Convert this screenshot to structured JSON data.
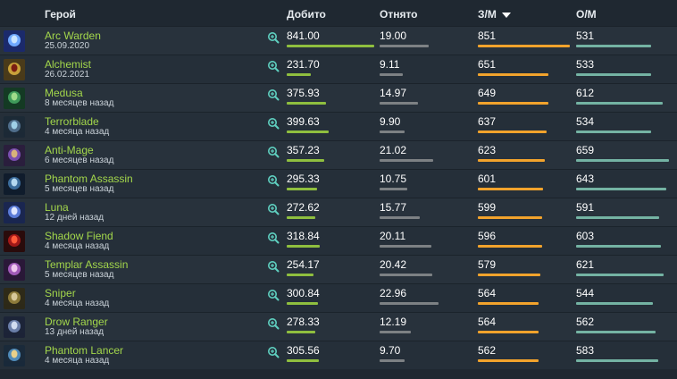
{
  "header": {
    "hero": "Герой",
    "dealt": "Добито",
    "denied": "Отнято",
    "gpm": "З/М",
    "xpm": "О/М"
  },
  "colors": {
    "dealt_bar": "#8fbf3f",
    "denied_bar": "#7d8184",
    "gpm_bar": "#f2a32c",
    "xpm_bar": "#74b3a3",
    "hero_name": "#a3d74b"
  },
  "maxima": {
    "dealt": 841.0,
    "denied": 22.96,
    "gpm": 851,
    "xpm": 659
  },
  "rows": [
    {
      "hero": "Arc Warden",
      "date": "25.09.2020",
      "dealt": "841.00",
      "denied": "19.00",
      "gpm": "851",
      "xpm": "531",
      "avatar": [
        "#1b2a6b",
        "#6fa8ff",
        "#c9e4ff"
      ]
    },
    {
      "hero": "Alchemist",
      "date": "26.02.2021",
      "dealt": "231.70",
      "denied": "9.11",
      "gpm": "651",
      "xpm": "533",
      "avatar": [
        "#4a3b1a",
        "#c9a23a",
        "#7b1e12"
      ]
    },
    {
      "hero": "Medusa",
      "date": "8 месяцев назад",
      "dealt": "375.93",
      "denied": "14.97",
      "gpm": "649",
      "xpm": "612",
      "avatar": [
        "#143a24",
        "#3f9a5a",
        "#9fdc8a"
      ]
    },
    {
      "hero": "Terrorblade",
      "date": "4 месяца назад",
      "dealt": "399.63",
      "denied": "9.90",
      "gpm": "637",
      "xpm": "534",
      "avatar": [
        "#1c2a36",
        "#4f6d8a",
        "#9fd0e8"
      ]
    },
    {
      "hero": "Anti-Mage",
      "date": "6 месяцев назад",
      "dealt": "357.23",
      "denied": "21.02",
      "gpm": "623",
      "xpm": "659",
      "avatar": [
        "#2b1e3d",
        "#7a4fb0",
        "#d9b37a"
      ]
    },
    {
      "hero": "Phantom Assassin",
      "date": "5 месяцев назад",
      "dealt": "295.33",
      "denied": "10.75",
      "gpm": "601",
      "xpm": "643",
      "avatar": [
        "#101c2c",
        "#3b6b9a",
        "#b5d8f0"
      ]
    },
    {
      "hero": "Luna",
      "date": "12 дней назад",
      "dealt": "272.62",
      "denied": "15.77",
      "gpm": "599",
      "xpm": "591",
      "avatar": [
        "#1a2650",
        "#5a7ad6",
        "#e0e6ff"
      ]
    },
    {
      "hero": "Shadow Fiend",
      "date": "4 месяца назад",
      "dealt": "318.84",
      "denied": "20.11",
      "gpm": "596",
      "xpm": "603",
      "avatar": [
        "#2a0b0b",
        "#a01818",
        "#ff5a3a"
      ]
    },
    {
      "hero": "Templar Assassin",
      "date": "5 месяцев назад",
      "dealt": "254.17",
      "denied": "20.42",
      "gpm": "579",
      "xpm": "621",
      "avatar": [
        "#2a1838",
        "#a05ab8",
        "#f0c8f0"
      ]
    },
    {
      "hero": "Sniper",
      "date": "4 месяца назад",
      "dealt": "300.84",
      "denied": "22.96",
      "gpm": "564",
      "xpm": "544",
      "avatar": [
        "#2e2a18",
        "#8c7a3a",
        "#d8c89a"
      ]
    },
    {
      "hero": "Drow Ranger",
      "date": "13 дней назад",
      "dealt": "278.33",
      "denied": "12.19",
      "gpm": "564",
      "xpm": "562",
      "avatar": [
        "#1c2438",
        "#6a7ea8",
        "#d0dcf0"
      ]
    },
    {
      "hero": "Phantom Lancer",
      "date": "4 месяца назад",
      "dealt": "305.56",
      "denied": "9.70",
      "gpm": "562",
      "xpm": "583",
      "avatar": [
        "#1a2a3a",
        "#4f8ab8",
        "#e8d08a"
      ]
    }
  ]
}
